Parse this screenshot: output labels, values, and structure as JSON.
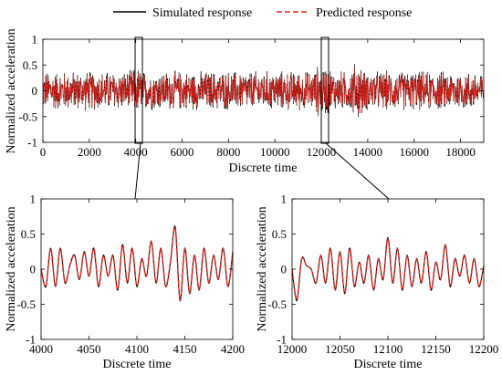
{
  "legend": {
    "position": "top",
    "entries": [
      {
        "label": "Simulated response",
        "color": "#000000",
        "style": "solid"
      },
      {
        "label": "Predicted response",
        "color": "#e8231a",
        "style": "dashed"
      }
    ]
  },
  "chart_data": [
    {
      "id": "main",
      "type": "line",
      "xlabel": "Discrete time",
      "ylabel": "Normalized acceleration",
      "xlim": [
        0,
        19000
      ],
      "ylim": [
        -1,
        1
      ],
      "xticks": [
        0,
        2000,
        4000,
        6000,
        8000,
        10000,
        12000,
        14000,
        16000,
        18000
      ],
      "yticks": [
        -1,
        -0.5,
        0,
        0.5,
        1
      ],
      "yticklabels": [
        "-1",
        "-0.5",
        "0",
        "0.5",
        "1"
      ],
      "grid": false,
      "series": [
        {
          "name": "Simulated response",
          "color": "#000000",
          "style": "solid"
        },
        {
          "name": "Predicted response",
          "color": "#e8231a",
          "style": "dashed"
        }
      ],
      "zoom_windows": [
        [
          4000,
          4200
        ],
        [
          12000,
          12200
        ]
      ]
    },
    {
      "id": "zoom-1",
      "type": "line",
      "xlabel": "Discrete time",
      "ylabel": "Normalized acceleration",
      "xlim": [
        4000,
        4200
      ],
      "ylim": [
        -1,
        1
      ],
      "xticks": [
        4000,
        4050,
        4100,
        4150,
        4200
      ],
      "yticks": [
        -1,
        -0.5,
        0,
        0.5,
        1
      ],
      "yticklabels": [
        "-1",
        "-0.5",
        "0",
        "0.5",
        "1"
      ],
      "grid": false,
      "series": [
        {
          "name": "Simulated response",
          "color": "#000000",
          "x": [
            4000,
            4005,
            4010,
            4015,
            4020,
            4025,
            4030,
            4035,
            4040,
            4045,
            4050,
            4055,
            4060,
            4065,
            4070,
            4075,
            4080,
            4085,
            4090,
            4095,
            4100,
            4105,
            4110,
            4115,
            4120,
            4125,
            4130,
            4135,
            4140,
            4145,
            4150,
            4155,
            4160,
            4165,
            4170,
            4175,
            4180,
            4185,
            4190,
            4195,
            4200
          ],
          "y": [
            0.0,
            -0.25,
            0.3,
            -0.25,
            0.3,
            -0.2,
            0.05,
            0.2,
            -0.15,
            0.25,
            -0.1,
            0.3,
            -0.25,
            0.2,
            -0.1,
            0.2,
            -0.3,
            0.35,
            -0.2,
            0.3,
            -0.25,
            0.15,
            -0.1,
            0.4,
            -0.2,
            0.3,
            -0.25,
            0.1,
            0.6,
            -0.45,
            0.3,
            -0.35,
            0.2,
            -0.3,
            0.3,
            -0.2,
            0.2,
            -0.15,
            0.3,
            -0.25,
            0.25
          ]
        },
        {
          "name": "Predicted response",
          "color": "#e8231a",
          "x": [
            4000,
            4005,
            4010,
            4015,
            4020,
            4025,
            4030,
            4035,
            4040,
            4045,
            4050,
            4055,
            4060,
            4065,
            4070,
            4075,
            4080,
            4085,
            4090,
            4095,
            4100,
            4105,
            4110,
            4115,
            4120,
            4125,
            4130,
            4135,
            4140,
            4145,
            4150,
            4155,
            4160,
            4165,
            4170,
            4175,
            4180,
            4185,
            4190,
            4195,
            4200
          ],
          "y": [
            0.0,
            -0.24,
            0.29,
            -0.24,
            0.29,
            -0.19,
            0.05,
            0.19,
            -0.14,
            0.24,
            -0.1,
            0.29,
            -0.24,
            0.19,
            -0.1,
            0.19,
            -0.29,
            0.34,
            -0.19,
            0.29,
            -0.24,
            0.14,
            -0.1,
            0.39,
            -0.19,
            0.29,
            -0.24,
            0.1,
            0.58,
            -0.44,
            0.29,
            -0.34,
            0.19,
            -0.29,
            0.29,
            -0.19,
            0.19,
            -0.14,
            0.29,
            -0.24,
            0.24
          ]
        }
      ]
    },
    {
      "id": "zoom-2",
      "type": "line",
      "xlabel": "Discrete time",
      "ylabel": "Normalized acceleration",
      "xlim": [
        12000,
        12200
      ],
      "ylim": [
        -1,
        1
      ],
      "xticks": [
        12000,
        12050,
        12100,
        12150,
        12200
      ],
      "yticks": [
        -1,
        -0.5,
        0,
        0.5,
        1
      ],
      "yticklabels": [
        "-1",
        "-0.5",
        "0",
        "0.5",
        "1"
      ],
      "grid": false,
      "series": [
        {
          "name": "Simulated response",
          "color": "#000000",
          "x": [
            12000,
            12005,
            12010,
            12015,
            12020,
            12025,
            12030,
            12035,
            12040,
            12045,
            12050,
            12055,
            12060,
            12065,
            12070,
            12075,
            12080,
            12085,
            12090,
            12095,
            12100,
            12105,
            12110,
            12115,
            12120,
            12125,
            12130,
            12135,
            12140,
            12145,
            12150,
            12155,
            12160,
            12165,
            12170,
            12175,
            12180,
            12185,
            12190,
            12195,
            12200
          ],
          "y": [
            0.0,
            -0.45,
            0.15,
            0.05,
            0.0,
            -0.2,
            0.2,
            -0.2,
            0.3,
            -0.3,
            0.25,
            -0.35,
            0.3,
            -0.25,
            0.1,
            -0.2,
            0.2,
            -0.3,
            0.15,
            -0.15,
            0.45,
            -0.2,
            0.3,
            -0.3,
            0.2,
            -0.25,
            0.15,
            -0.2,
            0.25,
            -0.3,
            0.1,
            -0.15,
            0.35,
            -0.25,
            0.15,
            -0.1,
            0.2,
            -0.2,
            0.15,
            -0.25,
            0.05
          ]
        },
        {
          "name": "Predicted response",
          "color": "#e8231a",
          "x": [
            12000,
            12005,
            12010,
            12015,
            12020,
            12025,
            12030,
            12035,
            12040,
            12045,
            12050,
            12055,
            12060,
            12065,
            12070,
            12075,
            12080,
            12085,
            12090,
            12095,
            12100,
            12105,
            12110,
            12115,
            12120,
            12125,
            12130,
            12135,
            12140,
            12145,
            12150,
            12155,
            12160,
            12165,
            12170,
            12175,
            12180,
            12185,
            12190,
            12195,
            12200
          ],
          "y": [
            0.0,
            -0.43,
            0.14,
            0.05,
            0.0,
            -0.19,
            0.19,
            -0.19,
            0.29,
            -0.29,
            0.24,
            -0.34,
            0.29,
            -0.24,
            0.1,
            -0.19,
            0.19,
            -0.29,
            0.14,
            -0.14,
            0.43,
            -0.19,
            0.29,
            -0.29,
            0.19,
            -0.24,
            0.14,
            -0.19,
            0.24,
            -0.29,
            0.1,
            -0.14,
            0.34,
            -0.24,
            0.14,
            -0.1,
            0.19,
            -0.19,
            0.14,
            -0.24,
            0.05
          ]
        }
      ]
    }
  ]
}
